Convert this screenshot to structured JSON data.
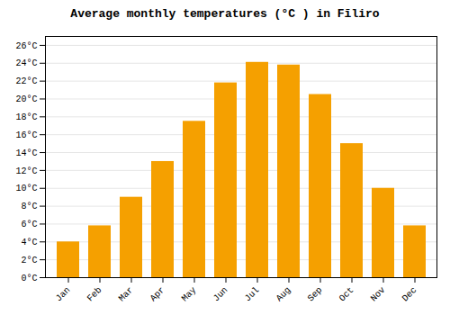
{
  "chart_data": {
    "type": "bar",
    "title": "Average monthly temperatures (°C ) in Fīliro",
    "categories": [
      "Jan",
      "Feb",
      "Mar",
      "Apr",
      "May",
      "Jun",
      "Jul",
      "Aug",
      "Sep",
      "Oct",
      "Nov",
      "Dec"
    ],
    "values": [
      4.0,
      5.8,
      9.0,
      13.0,
      17.5,
      21.8,
      24.1,
      23.8,
      20.5,
      15.0,
      10.0,
      5.8
    ],
    "color": "#F5A000",
    "ylim": [
      0,
      27
    ],
    "yticks": [
      {
        "value": 0,
        "label": "0°C"
      },
      {
        "value": 2,
        "label": "2°C"
      },
      {
        "value": 4,
        "label": "4°C"
      },
      {
        "value": 6,
        "label": "6°C"
      },
      {
        "value": 8,
        "label": "8°C"
      },
      {
        "value": 10,
        "label": "10°C"
      },
      {
        "value": 12,
        "label": "12°C"
      },
      {
        "value": 14,
        "label": "14°C"
      },
      {
        "value": 16,
        "label": "16°C"
      },
      {
        "value": 18,
        "label": "18°C"
      },
      {
        "value": 20,
        "label": "20°C"
      },
      {
        "value": 22,
        "label": "22°C"
      },
      {
        "value": 24,
        "label": "24°C"
      },
      {
        "value": 26,
        "label": "26°C"
      }
    ],
    "grid": true
  }
}
